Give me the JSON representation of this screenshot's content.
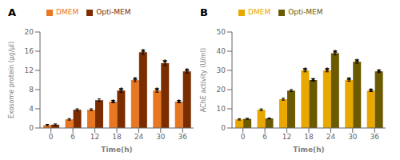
{
  "chart_data": [
    {
      "type": "bar",
      "title": "A",
      "xlabel": "Time(h)",
      "ylabel": "Exosome protein (μg/μl)",
      "categories": [
        "0",
        "6",
        "12",
        "18",
        "24",
        "30",
        "36"
      ],
      "series": [
        {
          "name": "DMEM",
          "color": "#E87722",
          "values": [
            0.6,
            1.8,
            3.8,
            5.5,
            10.0,
            7.8,
            5.5
          ],
          "errors": [
            0.15,
            0.15,
            0.2,
            0.25,
            0.35,
            0.35,
            0.25
          ]
        },
        {
          "name": "Opti-MEM",
          "color": "#7B2D00",
          "values": [
            0.7,
            3.8,
            5.8,
            7.8,
            15.8,
            13.5,
            11.8
          ],
          "errors": [
            0.15,
            0.2,
            0.25,
            0.35,
            0.45,
            0.45,
            0.35
          ]
        }
      ],
      "ylim": [
        0,
        20
      ],
      "yticks": [
        0,
        4,
        8,
        12,
        16,
        20
      ],
      "grid": false,
      "legend": "upper left",
      "annotations": [
        {
          "text": "*",
          "series": "DMEM",
          "category": "18"
        },
        {
          "text": "*",
          "series": "DMEM",
          "category": "24"
        },
        {
          "text": "*",
          "series": "DMEM",
          "category": "30"
        },
        {
          "text": "*",
          "series": "DMEM",
          "category": "36"
        },
        {
          "text": "*",
          "series": "Opti-MEM",
          "category": "18"
        },
        {
          "text": "*",
          "series": "Opti-MEM",
          "category": "24"
        },
        {
          "text": "*",
          "series": "Opti-MEM",
          "category": "30"
        },
        {
          "text": "*",
          "series": "Opti-MEM",
          "category": "36"
        }
      ]
    },
    {
      "type": "bar",
      "title": "B",
      "xlabel": "Time(h)",
      "ylabel": "AChE activity (U/ml)",
      "categories": [
        "0",
        "6",
        "12",
        "18",
        "24",
        "30",
        "36"
      ],
      "series": [
        {
          "name": "DMEM",
          "color": "#E8A800",
          "values": [
            4.5,
            9.5,
            15.0,
            30.0,
            30.0,
            25.0,
            19.5
          ],
          "errors": [
            0.35,
            0.45,
            0.5,
            0.75,
            0.75,
            0.65,
            0.55
          ]
        },
        {
          "name": "Opti-MEM",
          "color": "#6B5A00",
          "values": [
            4.8,
            5.0,
            19.5,
            25.0,
            39.0,
            34.5,
            29.5
          ],
          "errors": [
            0.25,
            0.25,
            0.5,
            0.6,
            0.9,
            0.75,
            0.65
          ]
        }
      ],
      "ylim": [
        0,
        50
      ],
      "yticks": [
        0,
        10,
        20,
        30,
        40,
        50
      ],
      "grid": false,
      "legend": "upper left",
      "annotations": [
        {
          "text": "*",
          "series": "DMEM",
          "category": "18"
        },
        {
          "text": "*",
          "series": "DMEM",
          "category": "24"
        },
        {
          "text": "*",
          "series": "DMEM",
          "category": "30"
        },
        {
          "text": "*",
          "series": "DMEM",
          "category": "36"
        },
        {
          "text": "*",
          "series": "Opti-MEM",
          "category": "18"
        },
        {
          "text": "*",
          "series": "Opti-MEM",
          "category": "24"
        },
        {
          "text": "*",
          "series": "Opti-MEM",
          "category": "30"
        },
        {
          "text": "*",
          "series": "Opti-MEM",
          "category": "36"
        }
      ]
    }
  ]
}
